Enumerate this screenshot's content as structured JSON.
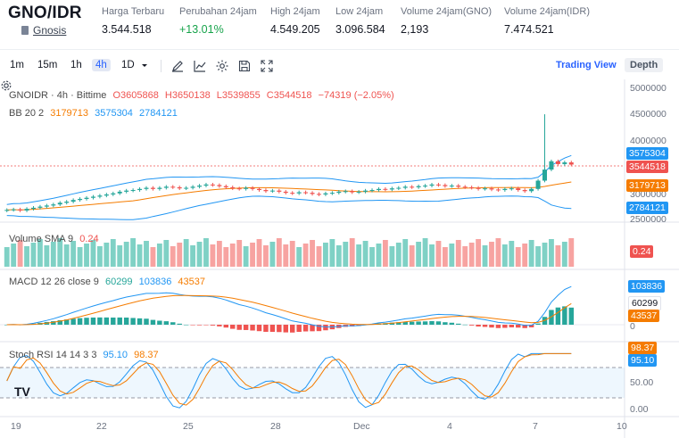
{
  "ticker": {
    "pair": "GNO/IDR",
    "coin_name": "Gnosis",
    "stats": [
      {
        "label": "Harga Terbaru",
        "value": "3.544.518",
        "color": "normal"
      },
      {
        "label": "Perubahan 24jam",
        "value": "+13.01%",
        "color": "up"
      },
      {
        "label": "High 24jam",
        "value": "4.549.205",
        "color": "normal"
      },
      {
        "label": "Low 24jam",
        "value": "3.096.584",
        "color": "normal"
      },
      {
        "label": "Volume 24jam(GNO)",
        "value": "2,193",
        "color": "normal"
      },
      {
        "label": "Volume 24jam(IDR)",
        "value": "7.474.521",
        "color": "normal"
      }
    ]
  },
  "toolbar": {
    "timeframes": [
      "1m",
      "15m",
      "1h",
      "4h",
      "1D"
    ],
    "active_timeframe": "4h",
    "trading_view_label": "Trading View",
    "depth_label": "Depth"
  },
  "main_legend": {
    "symbol": "GNOIDR · 4h · Bittime",
    "open": "O3605868",
    "high": "H3650138",
    "low": "L3539855",
    "close": "C3544518",
    "change": "−74319 (−2.05%)",
    "bb_label": "BB 20 2",
    "bb_basis": "3179713",
    "bb_upper": "3575304",
    "bb_lower": "2784121"
  },
  "price_axis": {
    "ticks": [
      "5000000",
      "4500000",
      "4000000",
      "3000000",
      "2500000"
    ],
    "last_price_tag": "3544518",
    "upper_tag": "3575304",
    "basis_tag": "3179713",
    "lower_tag": "2784121"
  },
  "volume_legend": {
    "label": "Volume SMA 9",
    "value": "0.24",
    "tag": "0.24"
  },
  "macd_legend": {
    "label": "MACD 12 26 close 9",
    "hist": "60299",
    "macd": "103836",
    "signal": "43537",
    "tags": [
      "103836",
      "60299",
      "43537"
    ],
    "zero_label": "0"
  },
  "stoch_legend": {
    "label": "Stoch RSI 14 14 3 3",
    "k": "95.10",
    "d": "98.37",
    "tags": [
      "98.37",
      "95.10"
    ],
    "ticks": [
      "50.00",
      "0.00"
    ]
  },
  "time_axis": [
    "19",
    "22",
    "25",
    "28",
    "Dec",
    "4",
    "7",
    "10"
  ],
  "colors": {
    "up": "#26a69a",
    "down": "#ef5350",
    "bb_basis": "#f57c00",
    "bb_band": "#2196f3",
    "accent": "#2962ff"
  },
  "chart_data": {
    "type": "candlestick",
    "price": {
      "close": [
        2.72,
        2.73,
        2.71,
        2.74,
        2.76,
        2.78,
        2.8,
        2.82,
        2.85,
        2.87,
        2.9,
        2.92,
        2.94,
        2.96,
        2.98,
        3.0,
        3.02,
        3.05,
        3.07,
        3.08,
        3.1,
        3.12,
        3.1,
        3.12,
        3.14,
        3.13,
        3.11,
        3.12,
        3.14,
        3.16,
        3.18,
        3.17,
        3.15,
        3.13,
        3.11,
        3.1,
        3.12,
        3.1,
        3.08,
        3.06,
        3.07,
        3.05,
        3.03,
        3.02,
        3.04,
        3.03,
        3.01,
        3.0,
        3.02,
        3.03,
        3.05,
        3.06,
        3.04,
        3.05,
        3.07,
        3.08,
        3.1,
        3.09,
        3.11,
        3.12,
        3.14,
        3.13,
        3.15,
        3.16,
        3.18,
        3.17,
        3.15,
        3.16,
        3.14,
        3.13,
        3.12,
        3.1,
        3.11,
        3.09,
        3.08,
        3.1,
        3.11,
        3.08,
        3.06,
        3.1,
        3.25,
        3.45,
        3.6,
        3.55,
        3.58,
        3.54
      ]
    },
    "volume_sma_value": 0.24,
    "macd": {
      "macd": 103836,
      "signal": 43537,
      "hist": 60299
    },
    "stoch_rsi": {
      "k": 95.1,
      "d": 98.37
    }
  }
}
